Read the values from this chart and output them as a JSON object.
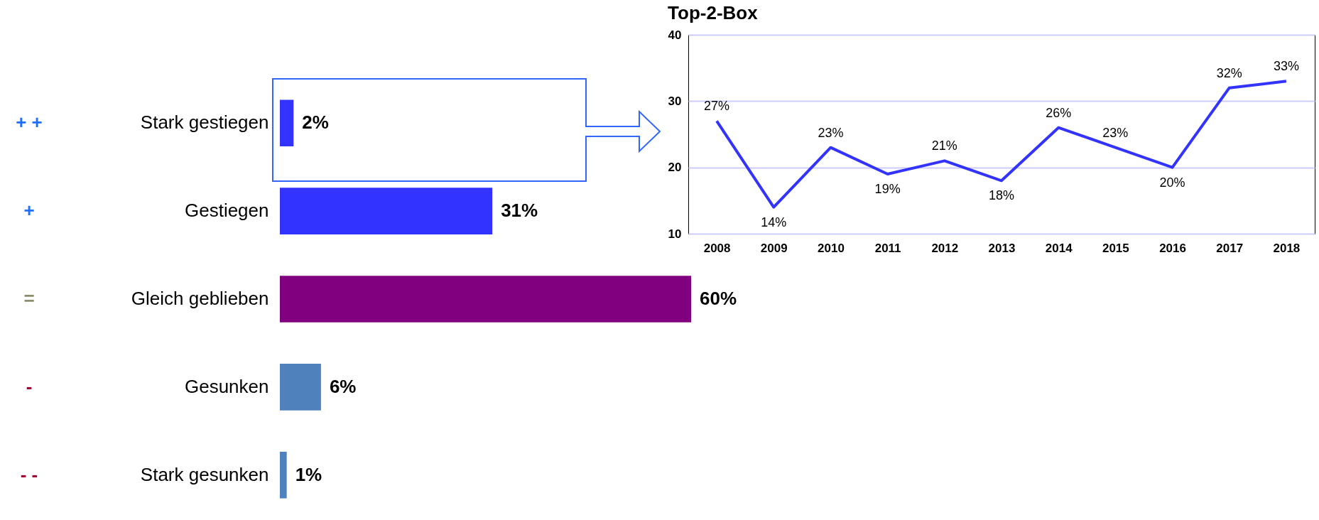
{
  "chart_data": [
    {
      "type": "bar",
      "orientation": "horizontal",
      "categories": [
        "Stark gestiegen",
        "Gestiegen",
        "Gleich geblieben",
        "Gesunken",
        "Stark gesunken"
      ],
      "values": [
        2,
        31,
        60,
        6,
        1
      ],
      "colors": [
        "#3333ff",
        "#3333ff",
        "#800080",
        "#4f81bd",
        "#4f81bd"
      ],
      "value_labels": [
        "2%",
        "31%",
        "60%",
        "6%",
        "1%"
      ],
      "annotations": [
        "+ +",
        "+",
        "=",
        "-",
        "- -"
      ]
    },
    {
      "type": "line",
      "title": "Top-2-Box",
      "categories": [
        "2008",
        "2009",
        "2010",
        "2011",
        "2012",
        "2013",
        "2014",
        "2015",
        "2016",
        "2017",
        "2018"
      ],
      "series": [
        {
          "color": "#3333ff",
          "values": [
            27,
            14,
            23,
            19,
            21,
            18,
            26,
            23,
            20,
            32,
            33
          ],
          "value_labels": [
            "27%",
            "14%",
            "23%",
            "19%",
            "21%",
            "18%",
            "26%",
            "23%",
            "20%",
            "32%",
            "33%"
          ]
        }
      ],
      "ylim": [
        10,
        40
      ],
      "yticks": [
        10,
        20,
        30,
        40
      ],
      "grid": "y"
    }
  ]
}
